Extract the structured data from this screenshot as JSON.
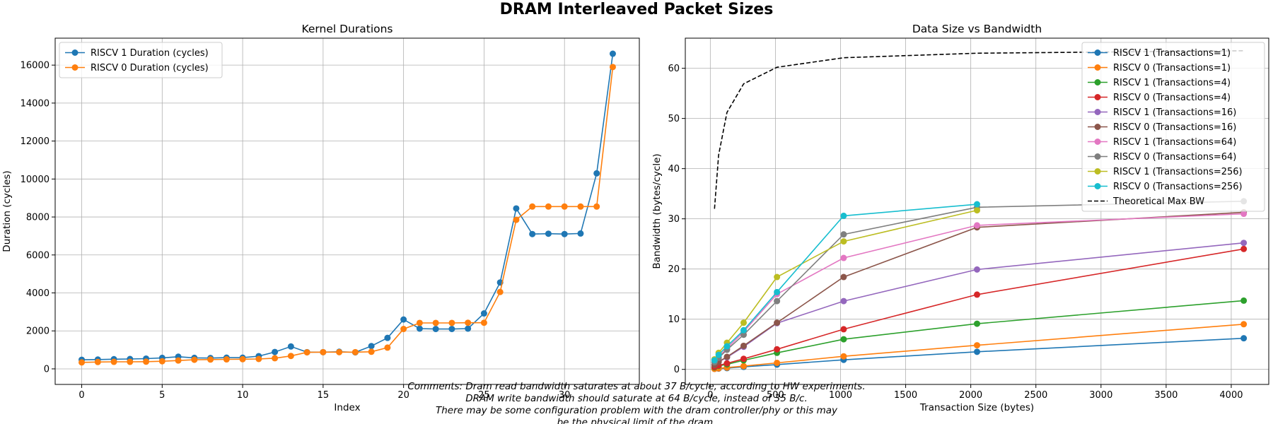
{
  "figure": {
    "title": "DRAM Interleaved Packet Sizes",
    "comment_lines": [
      "Comments: Dram read bandwidth saturates at about 37 B/cycle, according to HW experiments.",
      "DRAM write bandwidth should saturate at 64 B/cycle, instead of 35 B/c.",
      "There may be some configuration problem with the dram controller/phy or this may",
      "be the physical limit of the dram."
    ]
  },
  "chart_data": [
    {
      "type": "line",
      "title": "Kernel Durations",
      "xlabel": "Index",
      "ylabel": "Duration (cycles)",
      "xlim": [
        -1.65,
        34.65
      ],
      "ylim": [
        -820,
        17420
      ],
      "xticks": [
        0,
        5,
        10,
        15,
        20,
        25,
        30
      ],
      "yticks": [
        0,
        2000,
        4000,
        6000,
        8000,
        10000,
        12000,
        14000,
        16000
      ],
      "grid": true,
      "legend_position": "upper-left",
      "x": [
        0,
        1,
        2,
        3,
        4,
        5,
        6,
        7,
        8,
        9,
        10,
        11,
        12,
        13,
        14,
        15,
        16,
        17,
        18,
        19,
        20,
        21,
        22,
        23,
        24,
        25,
        26,
        27,
        28,
        29,
        30,
        31,
        32,
        33
      ],
      "series": [
        {
          "name": "RISCV 1 Duration (cycles)",
          "color": "#1f77b4",
          "values": [
            480,
            490,
            510,
            520,
            540,
            580,
            640,
            580,
            570,
            590,
            590,
            670,
            890,
            1180,
            880,
            880,
            900,
            870,
            1200,
            1630,
            2600,
            2120,
            2100,
            2100,
            2120,
            2920,
            4550,
            8450,
            7100,
            7120,
            7100,
            7130,
            10300,
            16600
          ]
        },
        {
          "name": "RISCV 0 Duration (cycles)",
          "color": "#ff7f0e",
          "values": [
            340,
            360,
            370,
            370,
            380,
            400,
            440,
            480,
            490,
            500,
            510,
            520,
            560,
            680,
            870,
            880,
            880,
            880,
            900,
            1120,
            2100,
            2420,
            2420,
            2420,
            2430,
            2430,
            4050,
            7850,
            8550,
            8550,
            8550,
            8550,
            8550,
            15900
          ]
        }
      ]
    },
    {
      "type": "line",
      "title": "Data Size vs Bandwidth",
      "xlabel": "Transaction Size (bytes)",
      "ylabel": "Bandwidth (bytes/cycle)",
      "xlim": [
        -192,
        4288
      ],
      "ylim": [
        -3.0,
        66.0
      ],
      "xticks": [
        0,
        500,
        1000,
        1500,
        2000,
        2500,
        3000,
        3500,
        4000
      ],
      "yticks": [
        0,
        10,
        20,
        30,
        40,
        50,
        60
      ],
      "grid": true,
      "legend_position": "upper-right",
      "x": [
        32,
        64,
        128,
        256,
        512,
        1024,
        2048,
        4096
      ],
      "series": [
        {
          "name": "RISCV 1 (Transactions=1)",
          "color": "#1f77b4",
          "values": [
            0.1,
            0.15,
            0.25,
            0.5,
            0.95,
            1.9,
            3.5,
            6.2
          ]
        },
        {
          "name": "RISCV 0 (Transactions=1)",
          "color": "#ff7f0e",
          "values": [
            0.1,
            0.2,
            0.35,
            0.65,
            1.3,
            2.6,
            4.8,
            9.0
          ]
        },
        {
          "name": "RISCV 1 (Transactions=4)",
          "color": "#2ca02c",
          "values": [
            0.4,
            0.7,
            1.0,
            1.8,
            3.3,
            6.0,
            9.1,
            13.7
          ]
        },
        {
          "name": "RISCV 0 (Transactions=4)",
          "color": "#d62728",
          "values": [
            0.5,
            0.8,
            1.2,
            2.1,
            4.0,
            8.0,
            14.9,
            24.0
          ]
        },
        {
          "name": "RISCV 1 (Transactions=16)",
          "color": "#9467bd",
          "values": [
            0.9,
            1.5,
            2.4,
            4.5,
            9.2,
            13.6,
            19.9,
            25.2
          ]
        },
        {
          "name": "RISCV 0 (Transactions=16)",
          "color": "#8c564b",
          "values": [
            0.9,
            1.5,
            2.5,
            4.7,
            9.3,
            18.4,
            28.3,
            31.3
          ]
        },
        {
          "name": "RISCV 1 (Transactions=64)",
          "color": "#e377c2",
          "values": [
            1.5,
            2.5,
            4.2,
            7.5,
            15.0,
            22.2,
            28.7,
            31.0
          ]
        },
        {
          "name": "RISCV 0 (Transactions=64)",
          "color": "#7f7f7f",
          "values": [
            1.4,
            2.3,
            3.9,
            6.9,
            13.6,
            26.9,
            32.3,
            33.5
          ]
        },
        {
          "name": "RISCV 1 (Transactions=256)",
          "color": "#bcbd22",
          "values": [
            2.0,
            3.3,
            5.3,
            9.3,
            18.4,
            25.5,
            31.7,
            null
          ]
        },
        {
          "name": "RISCV 0 (Transactions=256)",
          "color": "#17becf",
          "values": [
            1.8,
            2.9,
            4.6,
            7.8,
            15.4,
            30.6,
            32.9,
            null
          ]
        },
        {
          "name": "Theoretical Max BW",
          "color": "#000000",
          "dashed": true,
          "values": [
            32,
            42.7,
            51.2,
            56.9,
            60.2,
            62.1,
            63.0,
            63.5
          ]
        }
      ]
    }
  ]
}
